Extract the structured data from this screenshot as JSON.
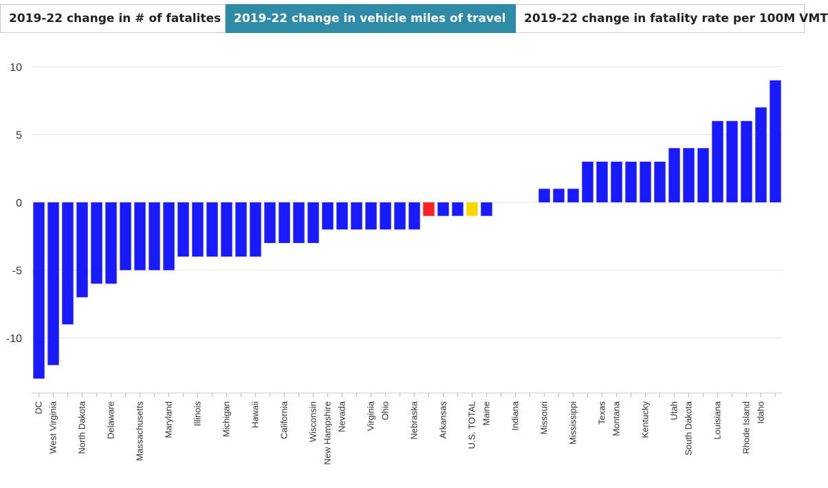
{
  "tabs": [
    {
      "label": "2019-22 change in # of fatalites",
      "active": false
    },
    {
      "label": "2019-22 change in vehicle miles of travel",
      "active": true
    },
    {
      "label": "2019-22 change in fatality rate per 100M VMT",
      "active": false
    }
  ],
  "colors": {
    "bar": "#1a1aff",
    "highlight_red": "#ff2020",
    "highlight_yellow": "#ffd700",
    "grid": "#e6e6e6",
    "tab_active": "#2f8aa8"
  },
  "chart_data": {
    "type": "bar",
    "ylim": [
      -14,
      10
    ],
    "yticks": [
      -10,
      -5,
      0,
      5,
      10
    ],
    "grid": true,
    "bars": [
      {
        "value": -13,
        "label": "DC"
      },
      {
        "value": -12,
        "label": "West Virginia"
      },
      {
        "value": -9,
        "label": ""
      },
      {
        "value": -7,
        "label": "North Dakota"
      },
      {
        "value": -6,
        "label": ""
      },
      {
        "value": -6,
        "label": "Delaware"
      },
      {
        "value": -5,
        "label": ""
      },
      {
        "value": -5,
        "label": "Massachusetts"
      },
      {
        "value": -5,
        "label": ""
      },
      {
        "value": -5,
        "label": "Maryland"
      },
      {
        "value": -4,
        "label": ""
      },
      {
        "value": -4,
        "label": "Illinois"
      },
      {
        "value": -4,
        "label": ""
      },
      {
        "value": -4,
        "label": "Michigan"
      },
      {
        "value": -4,
        "label": ""
      },
      {
        "value": -4,
        "label": "Hawaii"
      },
      {
        "value": -3,
        "label": ""
      },
      {
        "value": -3,
        "label": "California"
      },
      {
        "value": -3,
        "label": ""
      },
      {
        "value": -3,
        "label": "Wisconsin"
      },
      {
        "value": -2,
        "label": "New Hampshire"
      },
      {
        "value": -2,
        "label": "Nevada"
      },
      {
        "value": -2,
        "label": ""
      },
      {
        "value": -2,
        "label": "Virginia"
      },
      {
        "value": -2,
        "label": "Ohio"
      },
      {
        "value": -2,
        "label": ""
      },
      {
        "value": -2,
        "label": "Nebraska"
      },
      {
        "value": -1,
        "label": "",
        "highlight": "red"
      },
      {
        "value": -1,
        "label": "Arkansas"
      },
      {
        "value": -1,
        "label": ""
      },
      {
        "value": -1,
        "label": "U.S. TOTAL",
        "highlight": "yellow"
      },
      {
        "value": -1,
        "label": "Maine"
      },
      {
        "value": 0,
        "label": ""
      },
      {
        "value": 0,
        "label": "Indiana"
      },
      {
        "value": 0,
        "label": ""
      },
      {
        "value": 1,
        "label": "Missouri"
      },
      {
        "value": 1,
        "label": ""
      },
      {
        "value": 1,
        "label": "Mississippi"
      },
      {
        "value": 3,
        "label": ""
      },
      {
        "value": 3,
        "label": "Texas"
      },
      {
        "value": 3,
        "label": "Montana"
      },
      {
        "value": 3,
        "label": ""
      },
      {
        "value": 3,
        "label": "Kentucky"
      },
      {
        "value": 3,
        "label": ""
      },
      {
        "value": 4,
        "label": "Utah"
      },
      {
        "value": 4,
        "label": "South Dakota"
      },
      {
        "value": 4,
        "label": ""
      },
      {
        "value": 6,
        "label": "Louisiana"
      },
      {
        "value": 6,
        "label": ""
      },
      {
        "value": 6,
        "label": "Rhode Island"
      },
      {
        "value": 7,
        "label": "Idaho"
      },
      {
        "value": 9,
        "label": ""
      }
    ]
  }
}
